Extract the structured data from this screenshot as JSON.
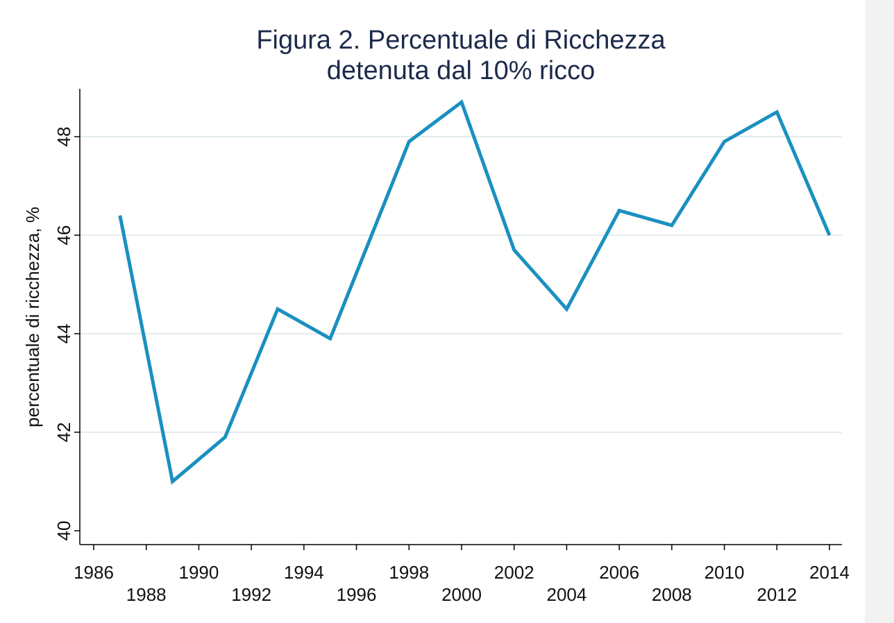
{
  "chart_data": {
    "type": "line",
    "title": [
      "Figura 2. Percentuale di Ricchezza",
      "detenuta dal 10% ricco"
    ],
    "xlabel": "",
    "ylabel": "percentuale di ricchezza, %",
    "xlim": [
      1986,
      2014
    ],
    "ylim": [
      40,
      48.9
    ],
    "x_ticks": [
      1986,
      1988,
      1990,
      1992,
      1994,
      1996,
      1998,
      2000,
      2002,
      2004,
      2006,
      2008,
      2010,
      2012,
      2014
    ],
    "y_ticks": [
      40,
      42,
      44,
      46,
      48
    ],
    "grid": true,
    "line_color": "#1a90c0",
    "series": [
      {
        "name": "percentuale di ricchezza",
        "x": [
          1987,
          1989,
          1991,
          1993,
          1995,
          1998,
          2000,
          2002,
          2004,
          2006,
          2008,
          2010,
          2012,
          2014
        ],
        "y": [
          46.4,
          41.0,
          41.9,
          44.5,
          43.9,
          47.9,
          48.7,
          45.7,
          44.5,
          46.5,
          46.2,
          47.9,
          48.5,
          46.0
        ]
      }
    ]
  }
}
